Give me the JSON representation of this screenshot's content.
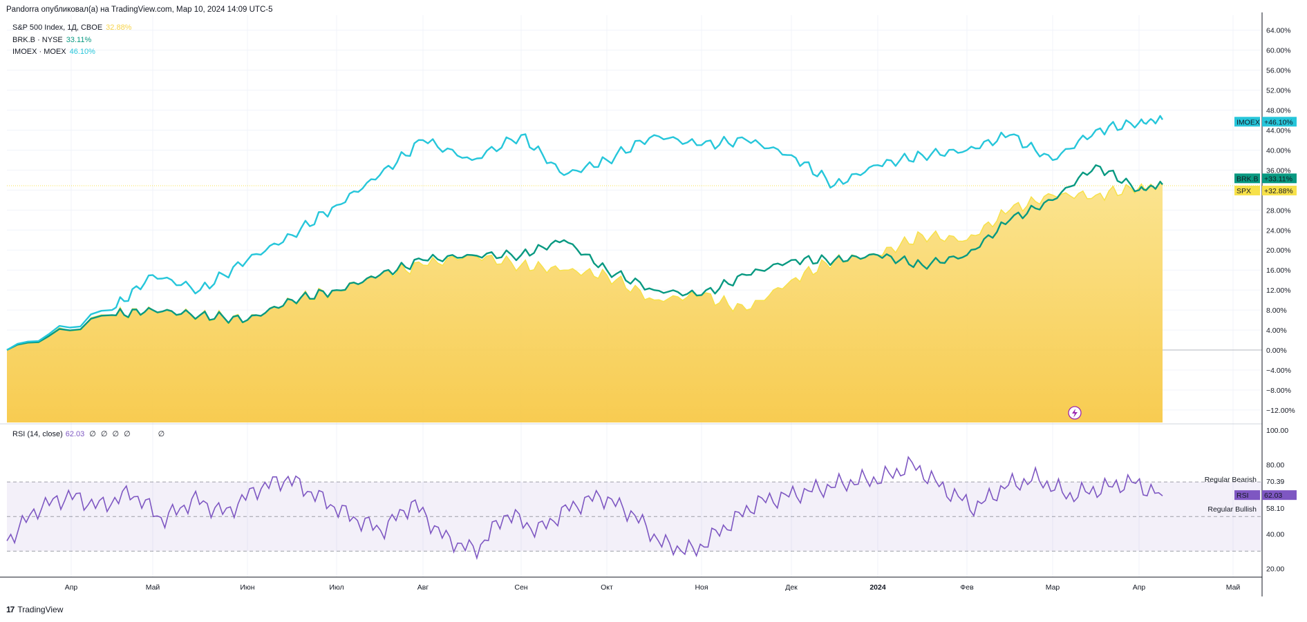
{
  "header": "Pandorra опубликовал(а) на TradingView.com, Мар 10, 2024 14:09 UTC-5",
  "legend": [
    {
      "name": "S&P 500 Index, 1Д, CBOE",
      "value": "32.88%",
      "color": "#f7d44a"
    },
    {
      "name": "BRK.B · NYSE",
      "value": "33.11%",
      "color": "#089981"
    },
    {
      "name": "IMOEX · MOEX",
      "value": "46.10%",
      "color": "#26c6da"
    }
  ],
  "rsi_legend": {
    "name": "RSI (14, close)",
    "value": "62.03",
    "extras": [
      "∅",
      "∅",
      "∅",
      "∅",
      "∅"
    ]
  },
  "footer": "TradingView",
  "price_badges": [
    {
      "symbol": "IMOEX",
      "value": "+46.10%",
      "color": "#26c6da"
    },
    {
      "symbol": "BRK.B",
      "value": "+33.11%",
      "color": "#089981"
    },
    {
      "symbol": "SPX",
      "value": "+32.88%",
      "color": "#f7e14a"
    }
  ],
  "rsi_badge": {
    "symbol": "RSI",
    "value": "62.03",
    "color": "#7e57c2"
  },
  "rsi_annotations": [
    "Regular Bearish",
    "70.39",
    "Regular Bullish",
    "58.10"
  ],
  "chart_data": [
    {
      "type": "line",
      "title": "S&P 500 Index, 1Д, CBOE",
      "x_ticks": [
        "Апр",
        "Май",
        "Июн",
        "Июл",
        "Авг",
        "Сен",
        "Окт",
        "Ноя",
        "Дек",
        "2024",
        "Фев",
        "Мар",
        "Апр",
        "Май"
      ],
      "y_ticks": [
        "64.00%",
        "60.00%",
        "56.00%",
        "52.00%",
        "48.00%",
        "44.00%",
        "40.00%",
        "36.00%",
        "32.00%",
        "28.00%",
        "24.00%",
        "20.00%",
        "16.00%",
        "12.00%",
        "8.00%",
        "4.00%",
        "0.00%",
        "−4.00%",
        "−8.00%",
        "−12.00%"
      ],
      "ylim": [
        -14.5,
        67
      ],
      "x_month_index": [
        0,
        0.5,
        1,
        1.5,
        2,
        2.5,
        3,
        3.5,
        4,
        4.5,
        5,
        5.5,
        6,
        6.5,
        7,
        7.5,
        8,
        8.5,
        9,
        9.5,
        10,
        10.5,
        11,
        11.5,
        12,
        12.25
      ],
      "series": [
        {
          "name": "SPX",
          "style": "area",
          "color": "#f7d44a",
          "values": [
            0,
            7,
            8,
            7,
            6,
            10,
            12,
            15,
            17,
            19,
            17,
            16,
            15,
            10,
            11,
            8,
            14,
            18,
            19,
            23,
            22,
            28,
            31,
            31,
            32.5,
            32.88
          ]
        },
        {
          "name": "BRK.B",
          "style": "line",
          "color": "#089981",
          "values": [
            0,
            7,
            8,
            7,
            6,
            10,
            12,
            15,
            18,
            19,
            19,
            22,
            16,
            12,
            11,
            15,
            18,
            18,
            19,
            17,
            19,
            26,
            30,
            37,
            32,
            33.11
          ]
        },
        {
          "name": "IMOEX",
          "style": "line",
          "color": "#26c6da",
          "values": [
            0,
            8,
            15,
            12,
            18,
            23,
            29,
            35,
            42,
            38,
            43,
            35,
            38,
            43,
            41,
            42,
            39,
            33,
            37,
            39,
            40,
            43,
            38,
            44,
            45.5,
            46.1
          ]
        }
      ]
    },
    {
      "type": "line",
      "title": "RSI (14, close)",
      "y_ticks": [
        "100.00",
        "80.00",
        "70.39",
        "58.10",
        "40.00",
        "20.00"
      ],
      "ylim": [
        15,
        102
      ],
      "bands": {
        "upper": 70,
        "middle": 50,
        "lower": 30
      },
      "series": [
        {
          "name": "RSI",
          "color": "#7e57c2",
          "values": [
            36,
            55,
            62,
            56,
            64,
            48,
            60,
            52,
            66,
            72,
            61,
            50,
            42,
            58,
            38,
            30,
            52,
            42,
            55,
            62,
            52,
            34,
            30,
            44,
            58,
            62,
            66,
            70,
            72,
            80,
            66,
            55,
            68,
            72,
            62,
            66,
            70,
            62.03
          ]
        }
      ]
    }
  ]
}
